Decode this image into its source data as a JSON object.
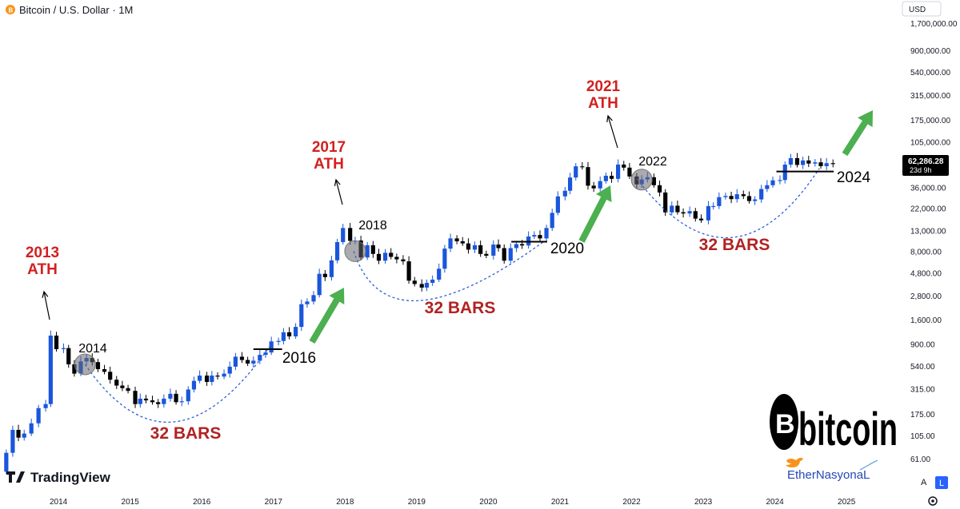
{
  "header": {
    "title": "Bitcoin / U.S. Dollar · 1M",
    "currency": "USD"
  },
  "price_tag": {
    "price": "62,286.28",
    "countdown": "23d 9h"
  },
  "footer": {
    "logo_text": "TradingView",
    "brand_text": "bitcoin",
    "handle": "EtherNasyonaL",
    "auto_button": "A",
    "log_button": "L"
  },
  "colors": {
    "up": "#1a56db",
    "down": "#000000",
    "annotation_red": "#d32020",
    "bars_red": "#b22222",
    "arrow_green": "#4caf50",
    "dotted_curve": "#2d5fd3",
    "header_icon": "#f7931a",
    "twitter_bird": "#f7931a",
    "handle_color": "#2448b8",
    "l_button": "#2962ff"
  },
  "chart_data": {
    "type": "candlestick",
    "scale": "log",
    "timeframe": "1M",
    "y_ticks": [
      "1,700,000.00",
      "900,000.00",
      "540,000.00",
      "315,000.00",
      "175,000.00",
      "105,000.00",
      "62,286.28",
      "36,000.00",
      "22,000.00",
      "13,000.00",
      "8,000.00",
      "4,800.00",
      "2,800.00",
      "1,600.00",
      "900.00",
      "540.00",
      "315.00",
      "175.00",
      "105.00",
      "61.00"
    ],
    "y_tick_values": [
      1700000,
      900000,
      540000,
      315000,
      175000,
      105000,
      62286,
      36000,
      22000,
      13000,
      8000,
      4800,
      2800,
      1600,
      900,
      540,
      315,
      175,
      105,
      61
    ],
    "x_ticks": [
      "2014",
      "2015",
      "2016",
      "2017",
      "2018",
      "2019",
      "2020",
      "2021",
      "2022",
      "2023",
      "2024",
      "2025"
    ],
    "x_tick_dates": [
      2014.0,
      2015.0,
      2016.0,
      2017.0,
      2018.0,
      2019.0,
      2020.0,
      2021.0,
      2022.0,
      2023.0,
      2024.0,
      2025.0
    ],
    "ylim": [
      45,
      2000000
    ],
    "xlim": [
      2013.2,
      2025.6
    ],
    "close_anchors": [
      [
        2013.25,
        70
      ],
      [
        2013.34,
        120
      ],
      [
        2013.42,
        100
      ],
      [
        2013.5,
        110
      ],
      [
        2013.6,
        140
      ],
      [
        2013.7,
        200
      ],
      [
        2013.8,
        220
      ],
      [
        2013.87,
        1100
      ],
      [
        2013.95,
        800
      ],
      [
        2014.05,
        820
      ],
      [
        2014.12,
        560
      ],
      [
        2014.2,
        450
      ],
      [
        2014.29,
        600
      ],
      [
        2014.37,
        650
      ],
      [
        2014.45,
        590
      ],
      [
        2014.53,
        500
      ],
      [
        2014.62,
        470
      ],
      [
        2014.7,
        390
      ],
      [
        2014.79,
        340
      ],
      [
        2014.87,
        320
      ],
      [
        2014.95,
        300
      ],
      [
        2015.05,
        220
      ],
      [
        2015.12,
        250
      ],
      [
        2015.2,
        240
      ],
      [
        2015.29,
        230
      ],
      [
        2015.37,
        220
      ],
      [
        2015.45,
        250
      ],
      [
        2015.54,
        280
      ],
      [
        2015.62,
        230
      ],
      [
        2015.7,
        235
      ],
      [
        2015.79,
        310
      ],
      [
        2015.87,
        380
      ],
      [
        2015.95,
        430
      ],
      [
        2016.05,
        370
      ],
      [
        2016.12,
        430
      ],
      [
        2016.2,
        420
      ],
      [
        2016.29,
        450
      ],
      [
        2016.37,
        530
      ],
      [
        2016.45,
        670
      ],
      [
        2016.54,
        620
      ],
      [
        2016.62,
        570
      ],
      [
        2016.7,
        610
      ],
      [
        2016.79,
        700
      ],
      [
        2016.87,
        740
      ],
      [
        2016.95,
        960
      ],
      [
        2017.05,
        970
      ],
      [
        2017.12,
        1190
      ],
      [
        2017.2,
        1080
      ],
      [
        2017.29,
        1350
      ],
      [
        2017.37,
        2300
      ],
      [
        2017.45,
        2450
      ],
      [
        2017.54,
        2850
      ],
      [
        2017.62,
        4700
      ],
      [
        2017.7,
        4350
      ],
      [
        2017.79,
        6450
      ],
      [
        2017.87,
        9900
      ],
      [
        2017.95,
        13800
      ],
      [
        2018.05,
        10200
      ],
      [
        2018.12,
        10300
      ],
      [
        2018.2,
        6900
      ],
      [
        2018.29,
        9200
      ],
      [
        2018.37,
        7500
      ],
      [
        2018.45,
        6400
      ],
      [
        2018.54,
        7700
      ],
      [
        2018.62,
        7000
      ],
      [
        2018.7,
        6600
      ],
      [
        2018.79,
        6300
      ],
      [
        2018.87,
        4000
      ],
      [
        2018.95,
        3700
      ],
      [
        2019.05,
        3400
      ],
      [
        2019.12,
        3800
      ],
      [
        2019.2,
        4100
      ],
      [
        2019.29,
        5300
      ],
      [
        2019.37,
        8500
      ],
      [
        2019.45,
        10800
      ],
      [
        2019.54,
        10100
      ],
      [
        2019.62,
        9600
      ],
      [
        2019.7,
        8300
      ],
      [
        2019.79,
        9200
      ],
      [
        2019.87,
        7500
      ],
      [
        2019.95,
        7200
      ],
      [
        2020.05,
        9350
      ],
      [
        2020.12,
        8600
      ],
      [
        2020.2,
        6400
      ],
      [
        2020.29,
        8600
      ],
      [
        2020.37,
        9450
      ],
      [
        2020.45,
        9150
      ],
      [
        2020.54,
        11300
      ],
      [
        2020.62,
        11700
      ],
      [
        2020.7,
        10800
      ],
      [
        2020.79,
        13800
      ],
      [
        2020.87,
        19700
      ],
      [
        2020.95,
        29000
      ],
      [
        2021.05,
        33100
      ],
      [
        2021.12,
        45200
      ],
      [
        2021.2,
        58800
      ],
      [
        2021.29,
        57700
      ],
      [
        2021.37,
        37300
      ],
      [
        2021.45,
        35000
      ],
      [
        2021.54,
        41500
      ],
      [
        2021.62,
        47100
      ],
      [
        2021.7,
        43800
      ],
      [
        2021.79,
        61300
      ],
      [
        2021.87,
        57000
      ],
      [
        2021.95,
        46300
      ],
      [
        2022.05,
        38500
      ],
      [
        2022.12,
        43200
      ],
      [
        2022.2,
        45500
      ],
      [
        2022.29,
        37700
      ],
      [
        2022.37,
        31800
      ],
      [
        2022.45,
        19900
      ],
      [
        2022.54,
        23300
      ],
      [
        2022.62,
        20000
      ],
      [
        2022.7,
        19400
      ],
      [
        2022.79,
        20500
      ],
      [
        2022.87,
        17200
      ],
      [
        2022.95,
        16500
      ],
      [
        2023.05,
        23100
      ],
      [
        2023.12,
        23100
      ],
      [
        2023.2,
        28500
      ],
      [
        2023.29,
        29300
      ],
      [
        2023.37,
        27200
      ],
      [
        2023.45,
        30500
      ],
      [
        2023.54,
        29200
      ],
      [
        2023.62,
        26000
      ],
      [
        2023.7,
        27000
      ],
      [
        2023.79,
        34500
      ],
      [
        2023.87,
        37700
      ],
      [
        2023.95,
        42300
      ],
      [
        2024.05,
        42600
      ],
      [
        2024.12,
        61200
      ],
      [
        2024.2,
        71300
      ],
      [
        2024.29,
        60700
      ],
      [
        2024.37,
        67500
      ],
      [
        2024.45,
        62700
      ],
      [
        2024.54,
        64600
      ],
      [
        2024.62,
        59000
      ],
      [
        2024.7,
        63300
      ],
      [
        2024.79,
        62286
      ]
    ],
    "annotations": [
      {
        "label": "2013",
        "sub": "ATH",
        "style": "red"
      },
      {
        "label": "2017",
        "sub": "ATH",
        "style": "red"
      },
      {
        "label": "2021",
        "sub": "ATH",
        "style": "red"
      },
      {
        "label": "2014",
        "style": "black"
      },
      {
        "label": "2018",
        "style": "black"
      },
      {
        "label": "2022",
        "style": "black"
      },
      {
        "label": "2016",
        "style": "black"
      },
      {
        "label": "2020",
        "style": "black"
      },
      {
        "label": "2024",
        "style": "black"
      },
      {
        "label": "32 BARS",
        "style": "darkred"
      },
      {
        "label": "32 BARS",
        "style": "darkred"
      },
      {
        "label": "32 BARS",
        "style": "darkred"
      }
    ]
  }
}
